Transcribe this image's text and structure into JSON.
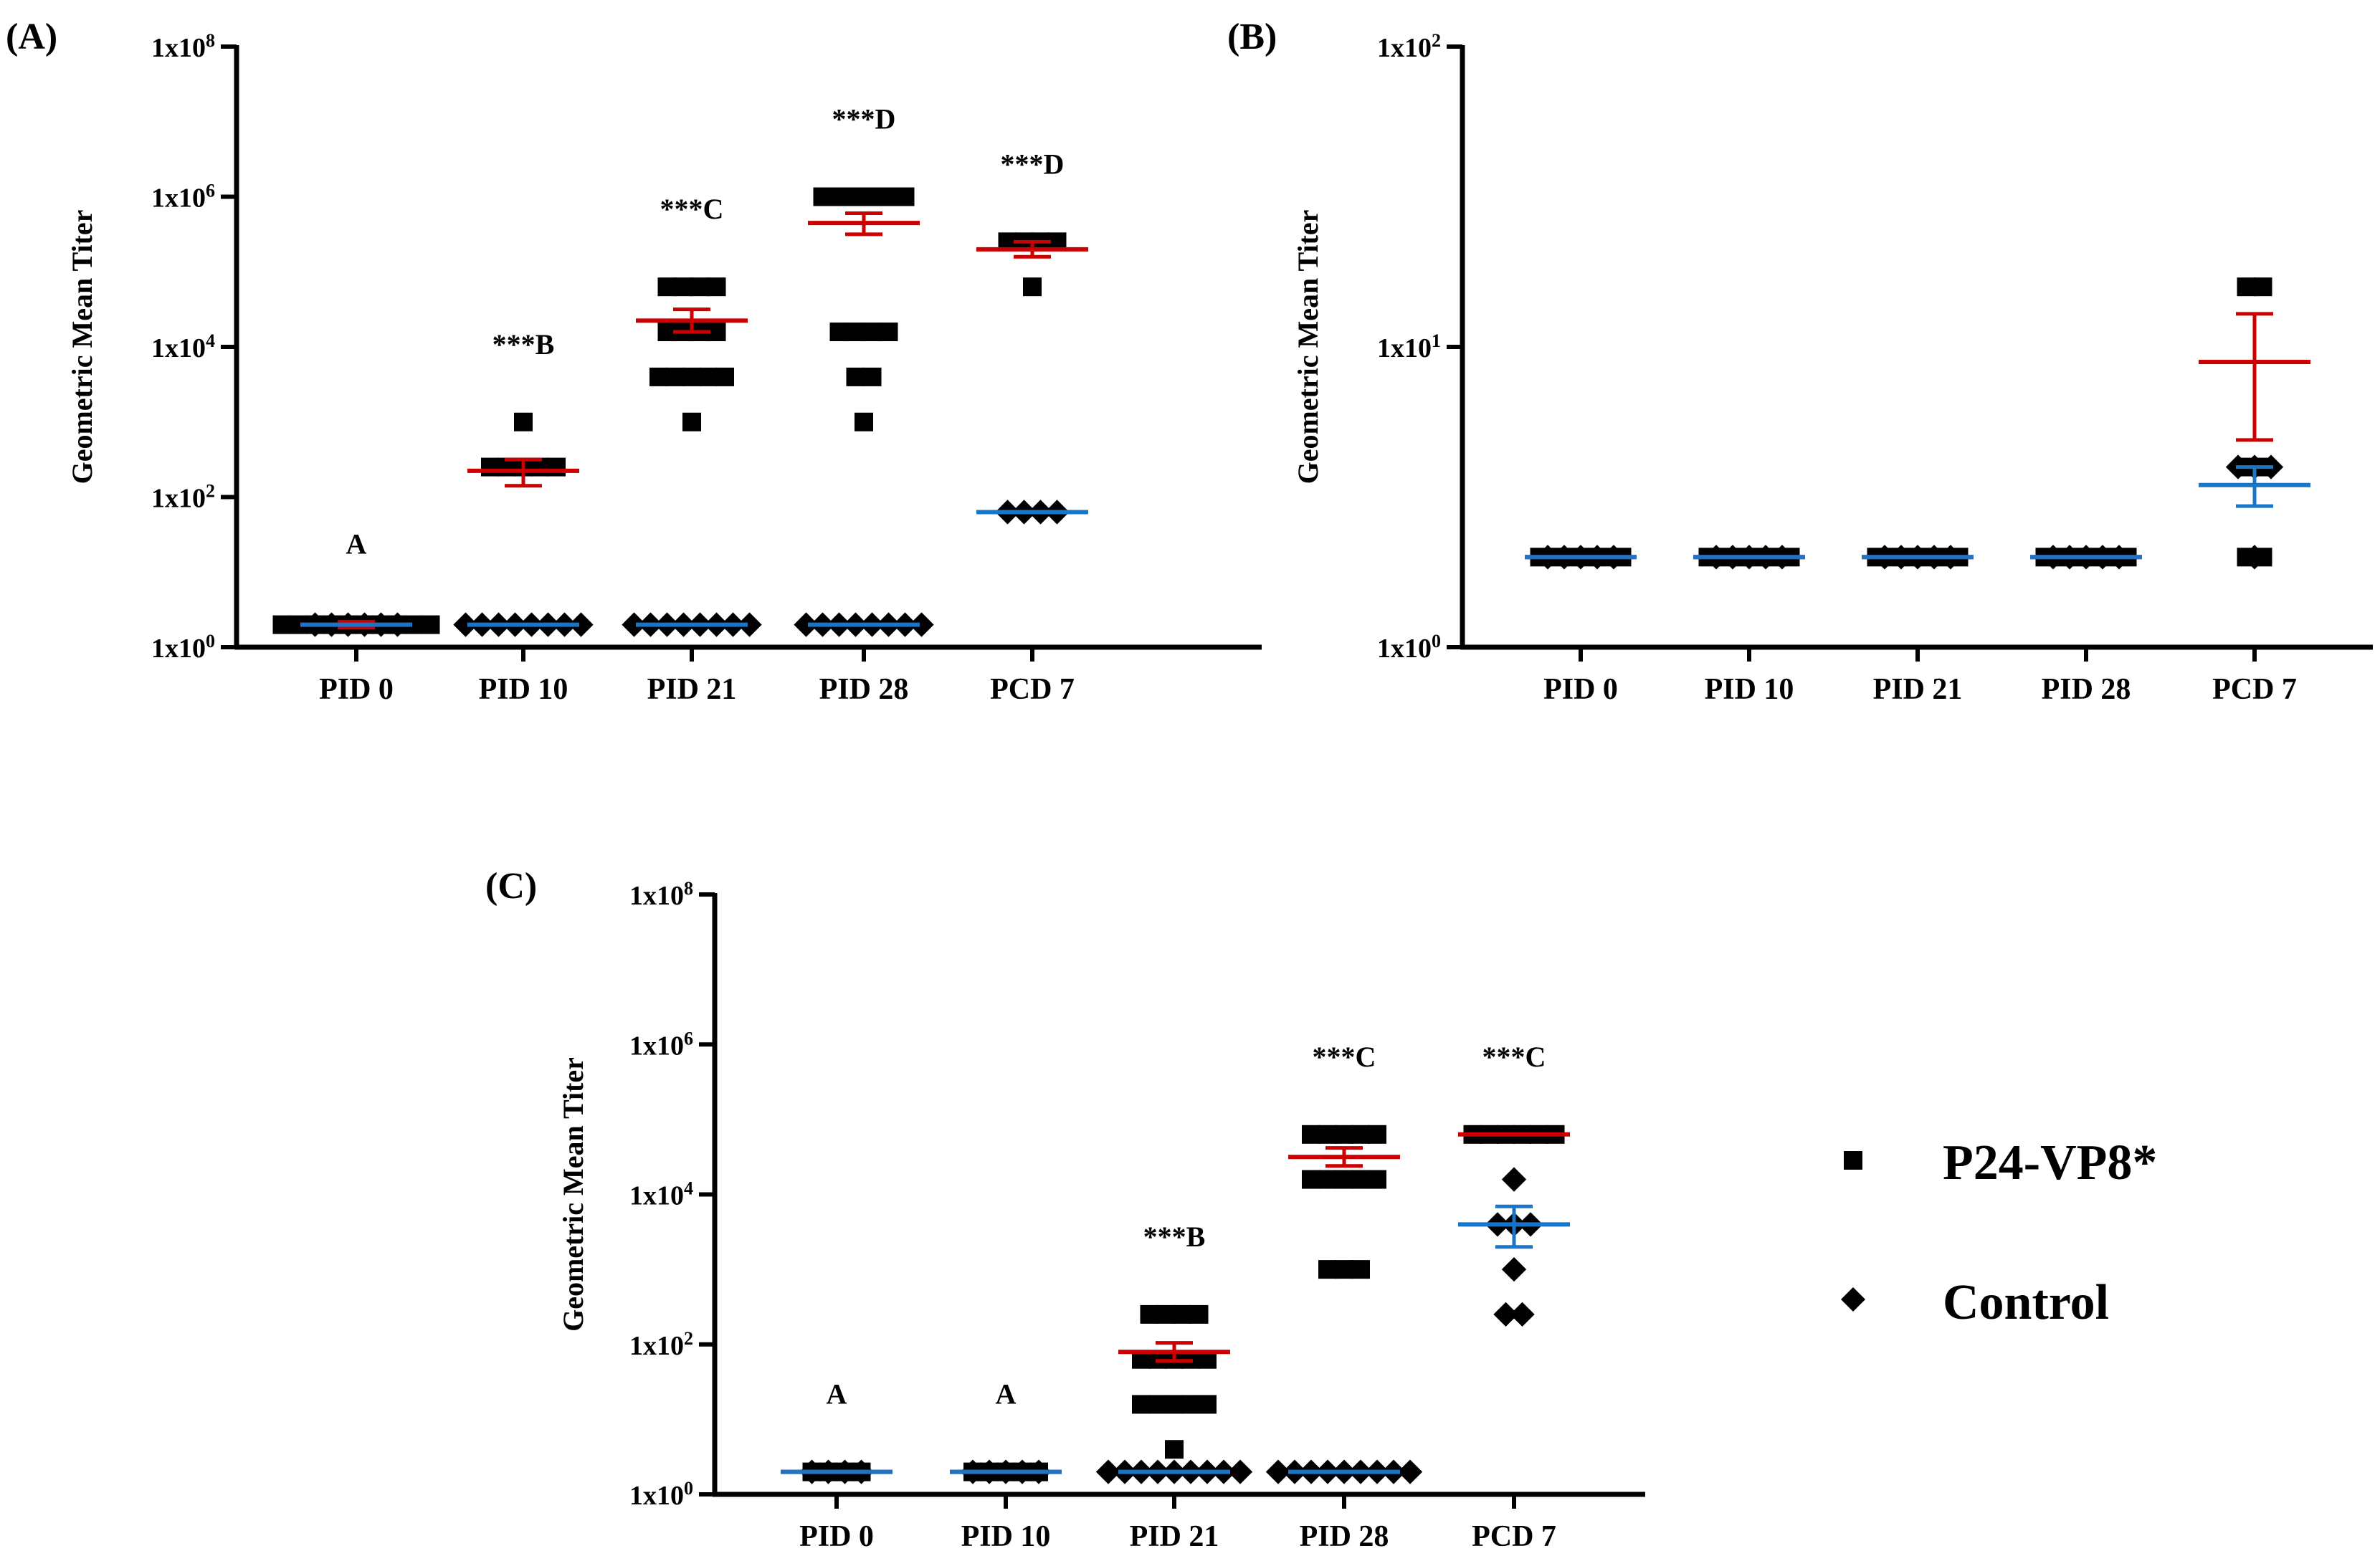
{
  "legend": {
    "p24_label": "P24-VP8*",
    "control_label": "Control"
  },
  "colors": {
    "axis": "#000000",
    "marker": "#000000",
    "p24_mean": "#cc0000",
    "control_mean": "#1a75c6"
  },
  "chart_data": [
    {
      "type": "scatter",
      "panel": "(A)",
      "ylabel": "Geometric Mean Titer",
      "yscale": "log",
      "ylim_exp": [
        0,
        8
      ],
      "yticks": [
        {
          "base": "1x10",
          "exp": "0",
          "e": 0
        },
        {
          "base": "1x10",
          "exp": "2",
          "e": 2
        },
        {
          "base": "1x10",
          "exp": "4",
          "e": 4
        },
        {
          "base": "1x10",
          "exp": "6",
          "e": 6
        },
        {
          "base": "1x10",
          "exp": "8",
          "e": 8
        }
      ],
      "categories": [
        "PID 0",
        "PID 10",
        "PID 21",
        "PID 28",
        "PCD 7"
      ],
      "significance": [
        "A",
        "***B",
        "***C",
        "***D",
        "***D"
      ],
      "series": [
        {
          "name": "P24-VP8*",
          "marker": "square",
          "points": [
            {
              "cat": 0,
              "log10_values": [
                0.3,
                0.3,
                0.3,
                0.3,
                0.3,
                0.3,
                0.3,
                0.3,
                0.3,
                0.3
              ]
            },
            {
              "cat": 1,
              "log10_values": [
                2.4,
                2.4,
                2.4,
                2.4,
                2.4,
                3.0
              ]
            },
            {
              "cat": 2,
              "log10_values": [
                4.8,
                4.8,
                4.8,
                4.8,
                4.2,
                4.2,
                4.2,
                4.2,
                3.6,
                3.6,
                3.6,
                3.6,
                3.6,
                3.0
              ]
            },
            {
              "cat": 3,
              "log10_values": [
                6.0,
                6.0,
                6.0,
                6.0,
                6.0,
                6.0,
                4.2,
                4.2,
                4.2,
                4.2,
                3.6,
                3.6,
                3.0
              ]
            },
            {
              "cat": 4,
              "log10_values": [
                5.4,
                5.4,
                5.4,
                5.4,
                4.8
              ]
            }
          ],
          "means": [
            {
              "cat": 0,
              "mean": 0.3,
              "err": [
                0.26,
                0.34
              ]
            },
            {
              "cat": 1,
              "mean": 2.35,
              "err": [
                2.15,
                2.5
              ]
            },
            {
              "cat": 2,
              "mean": 4.35,
              "err": [
                4.2,
                4.5
              ]
            },
            {
              "cat": 3,
              "mean": 5.65,
              "err": [
                5.5,
                5.78
              ]
            },
            {
              "cat": 4,
              "mean": 5.3,
              "err": [
                5.2,
                5.4
              ]
            }
          ]
        },
        {
          "name": "Control",
          "marker": "diamond",
          "points": [
            {
              "cat": 0,
              "log10_values": [
                0.3,
                0.3,
                0.3,
                0.3,
                0.3,
                0.3
              ]
            },
            {
              "cat": 1,
              "log10_values": [
                0.3,
                0.3,
                0.3,
                0.3,
                0.3,
                0.3,
                0.3,
                0.3
              ]
            },
            {
              "cat": 2,
              "log10_values": [
                0.3,
                0.3,
                0.3,
                0.3,
                0.3,
                0.3,
                0.3,
                0.3
              ]
            },
            {
              "cat": 3,
              "log10_values": [
                0.3,
                0.3,
                0.3,
                0.3,
                0.3,
                0.3,
                0.3,
                0.3
              ]
            },
            {
              "cat": 4,
              "log10_values": [
                1.8,
                1.8,
                1.8,
                1.8
              ]
            }
          ],
          "means": [
            {
              "cat": 0,
              "mean": 0.3,
              "err": [
                0.3,
                0.3
              ]
            },
            {
              "cat": 1,
              "mean": 0.3,
              "err": [
                0.3,
                0.3
              ]
            },
            {
              "cat": 2,
              "mean": 0.3,
              "err": [
                0.3,
                0.3
              ]
            },
            {
              "cat": 3,
              "mean": 0.3,
              "err": [
                0.3,
                0.3
              ]
            },
            {
              "cat": 4,
              "mean": 1.8,
              "err": [
                1.8,
                1.8
              ]
            }
          ]
        }
      ]
    },
    {
      "type": "scatter",
      "panel": "(B)",
      "ylabel": "Geometric Mean Titer",
      "yscale": "log",
      "ylim_exp": [
        0,
        2
      ],
      "yticks": [
        {
          "base": "1x10",
          "exp": "0",
          "e": 0
        },
        {
          "base": "1x10",
          "exp": "1",
          "e": 1
        },
        {
          "base": "1x10",
          "exp": "2",
          "e": 2
        }
      ],
      "categories": [
        "PID 0",
        "PID 10",
        "PID 21",
        "PID 28",
        "PCD 7"
      ],
      "significance": [],
      "series": [
        {
          "name": "P24-VP8*",
          "marker": "square",
          "points": [
            {
              "cat": 0,
              "log10_values": [
                0.3,
                0.3,
                0.3,
                0.3,
                0.3,
                0.3
              ]
            },
            {
              "cat": 1,
              "log10_values": [
                0.3,
                0.3,
                0.3,
                0.3,
                0.3,
                0.3
              ]
            },
            {
              "cat": 2,
              "log10_values": [
                0.3,
                0.3,
                0.3,
                0.3,
                0.3,
                0.3
              ]
            },
            {
              "cat": 3,
              "log10_values": [
                0.3,
                0.3,
                0.3,
                0.3,
                0.3,
                0.3
              ]
            },
            {
              "cat": 4,
              "log10_values": [
                1.2,
                1.2,
                0.6,
                0.6,
                0.3,
                0.3
              ]
            }
          ],
          "means": [
            {
              "cat": 0,
              "mean": 0.3,
              "err": [
                0.3,
                0.3
              ]
            },
            {
              "cat": 1,
              "mean": 0.3,
              "err": [
                0.3,
                0.3
              ]
            },
            {
              "cat": 2,
              "mean": 0.3,
              "err": [
                0.3,
                0.3
              ]
            },
            {
              "cat": 3,
              "mean": 0.3,
              "err": [
                0.3,
                0.3
              ]
            },
            {
              "cat": 4,
              "mean": 0.95,
              "err": [
                0.69,
                1.11
              ]
            }
          ]
        },
        {
          "name": "Control",
          "marker": "diamond",
          "points": [
            {
              "cat": 0,
              "log10_values": [
                0.3,
                0.3,
                0.3,
                0.3,
                0.3
              ]
            },
            {
              "cat": 1,
              "log10_values": [
                0.3,
                0.3,
                0.3,
                0.3,
                0.3
              ]
            },
            {
              "cat": 2,
              "log10_values": [
                0.3,
                0.3,
                0.3,
                0.3,
                0.3
              ]
            },
            {
              "cat": 3,
              "log10_values": [
                0.3,
                0.3,
                0.3,
                0.3,
                0.3
              ]
            },
            {
              "cat": 4,
              "log10_values": [
                0.6,
                0.6,
                0.6,
                0.3
              ]
            }
          ],
          "means": [
            {
              "cat": 0,
              "mean": 0.3,
              "err": [
                0.3,
                0.3
              ]
            },
            {
              "cat": 1,
              "mean": 0.3,
              "err": [
                0.3,
                0.3
              ]
            },
            {
              "cat": 2,
              "mean": 0.3,
              "err": [
                0.3,
                0.3
              ]
            },
            {
              "cat": 3,
              "mean": 0.3,
              "err": [
                0.3,
                0.3
              ]
            },
            {
              "cat": 4,
              "mean": 0.54,
              "err": [
                0.47,
                0.6
              ]
            }
          ]
        }
      ]
    },
    {
      "type": "scatter",
      "panel": "(C)",
      "ylabel": "Geometric Mean Titer",
      "yscale": "log",
      "ylim_exp": [
        0,
        8
      ],
      "yticks": [
        {
          "base": "1x10",
          "exp": "0",
          "e": 0
        },
        {
          "base": "1x10",
          "exp": "2",
          "e": 2
        },
        {
          "base": "1x10",
          "exp": "4",
          "e": 4
        },
        {
          "base": "1x10",
          "exp": "6",
          "e": 6
        },
        {
          "base": "1x10",
          "exp": "8",
          "e": 8
        }
      ],
      "categories": [
        "PID 0",
        "PID 10",
        "PID 21",
        "PID 28",
        "PCD 7"
      ],
      "significance": [
        "A",
        "A",
        "***B",
        "***C",
        "***C"
      ],
      "series": [
        {
          "name": "P24-VP8*",
          "marker": "square",
          "points": [
            {
              "cat": 0,
              "log10_values": [
                0.3,
                0.3,
                0.3,
                0.3
              ]
            },
            {
              "cat": 1,
              "log10_values": [
                0.3,
                0.3,
                0.3,
                0.3,
                0.3
              ]
            },
            {
              "cat": 2,
              "log10_values": [
                2.4,
                2.4,
                2.4,
                2.4,
                1.8,
                1.8,
                1.8,
                1.8,
                1.8,
                1.2,
                1.2,
                1.2,
                1.2,
                1.2,
                0.6
              ]
            },
            {
              "cat": 3,
              "log10_values": [
                4.8,
                4.8,
                4.8,
                4.8,
                4.8,
                4.2,
                4.2,
                4.2,
                4.2,
                4.2,
                3.0,
                3.0,
                3.0
              ]
            },
            {
              "cat": 4,
              "log10_values": [
                4.8,
                4.8,
                4.8,
                4.8,
                4.8,
                4.8
              ]
            }
          ],
          "means": [
            {
              "cat": 0,
              "mean": 0.3,
              "err": [
                0.3,
                0.3
              ]
            },
            {
              "cat": 1,
              "mean": 0.3,
              "err": [
                0.3,
                0.3
              ]
            },
            {
              "cat": 2,
              "mean": 1.9,
              "err": [
                1.78,
                2.02
              ]
            },
            {
              "cat": 3,
              "mean": 4.5,
              "err": [
                4.38,
                4.62
              ]
            },
            {
              "cat": 4,
              "mean": 4.8,
              "err": [
                4.8,
                4.8
              ]
            }
          ]
        },
        {
          "name": "Control",
          "marker": "diamond",
          "points": [
            {
              "cat": 0,
              "log10_values": [
                0.3,
                0.3,
                0.3,
                0.3
              ]
            },
            {
              "cat": 1,
              "log10_values": [
                0.3,
                0.3,
                0.3,
                0.3,
                0.3
              ]
            },
            {
              "cat": 2,
              "log10_values": [
                0.3,
                0.3,
                0.3,
                0.3,
                0.3,
                0.3,
                0.3,
                0.3,
                0.3
              ]
            },
            {
              "cat": 3,
              "log10_values": [
                0.3,
                0.3,
                0.3,
                0.3,
                0.3,
                0.3,
                0.3,
                0.3,
                0.3
              ]
            },
            {
              "cat": 4,
              "log10_values": [
                4.2,
                3.6,
                3.6,
                3.6,
                3.0,
                2.4,
                2.4
              ]
            }
          ],
          "means": [
            {
              "cat": 0,
              "mean": 0.3,
              "err": [
                0.3,
                0.3
              ]
            },
            {
              "cat": 1,
              "mean": 0.3,
              "err": [
                0.3,
                0.3
              ]
            },
            {
              "cat": 2,
              "mean": 0.3,
              "err": [
                0.3,
                0.3
              ]
            },
            {
              "cat": 3,
              "mean": 0.3,
              "err": [
                0.3,
                0.3
              ]
            },
            {
              "cat": 4,
              "mean": 3.6,
              "err": [
                3.3,
                3.84
              ]
            }
          ]
        }
      ]
    }
  ]
}
